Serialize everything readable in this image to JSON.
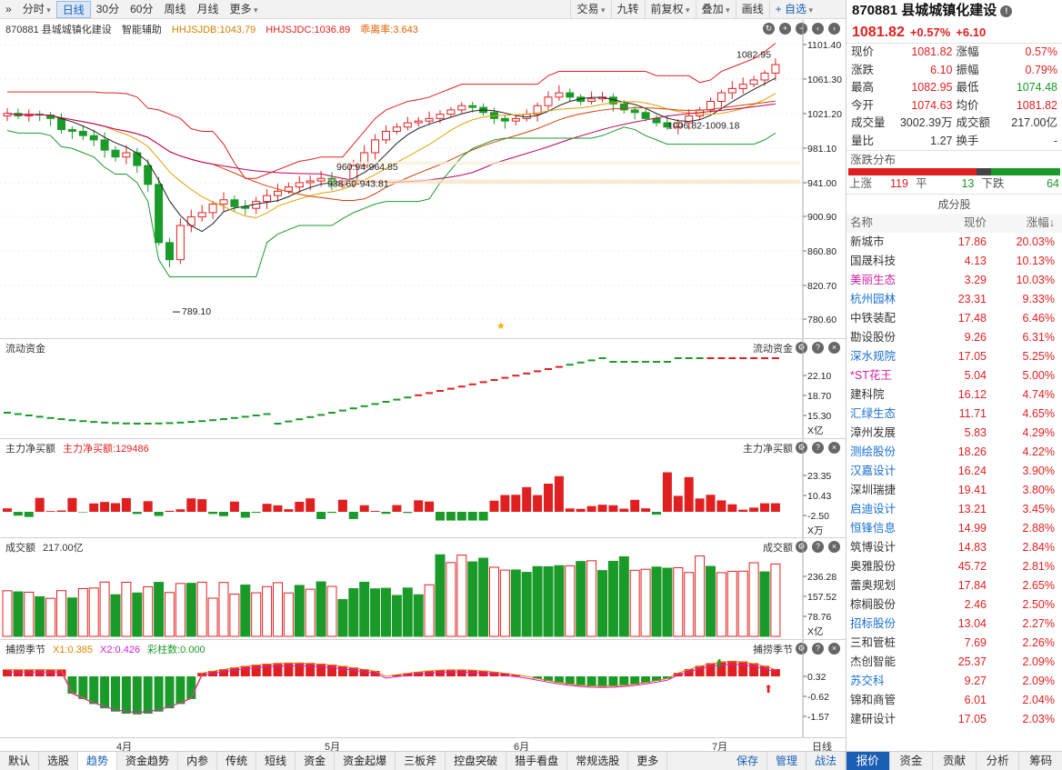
{
  "toolbar": {
    "left": [
      "分时",
      "日线",
      "30分",
      "60分",
      "周线",
      "月线",
      "更多"
    ],
    "right": [
      "交易",
      "九转",
      "前复权",
      "叠加",
      "画线",
      "+ 自选"
    ]
  },
  "main": {
    "title": "870881 县城城镇化建设",
    "assist": "智能辅助",
    "ind1": "HHJSJDB:1043.79",
    "ind2": "HHJSJDC:1036.89",
    "ind3": "乖离率:3.643",
    "axis": [
      "1101.40",
      "1061.30",
      "1021.20",
      "981.10",
      "941.00",
      "900.90",
      "860.80",
      "820.70",
      "780.60"
    ],
    "ann": [
      "1082.95",
      "1006.82-1009.18",
      "960.94-964.85",
      "938.60-943.81",
      "789.10"
    ]
  },
  "flow": {
    "title": "流动资金",
    "rtitle": "流动资金",
    "axis": [
      "22.10",
      "18.70",
      "15.30"
    ],
    "unit": "X亿"
  },
  "mainnet": {
    "title": "主力净买额",
    "val": "主力净买额:129486",
    "rtitle": "主力净买额",
    "axis": [
      "23.35",
      "10.43",
      "-2.50"
    ],
    "unit": "X万"
  },
  "vol": {
    "title": "成交额",
    "val": "217.00亿",
    "rtitle": "成交额",
    "axis": [
      "236.28",
      "157.52",
      "78.76"
    ],
    "unit": "X亿"
  },
  "season": {
    "title": "捕捞季节",
    "x1": "X1:0.385",
    "x2": "X2:0.426",
    "bar": "彩柱数:0.000",
    "rtitle": "捕捞季节",
    "axis": [
      "0.32",
      "-0.62",
      "-1.57"
    ]
  },
  "months": [
    "4月",
    "5月",
    "6月",
    "7月"
  ],
  "period": "日线",
  "bottom": {
    "tabs": [
      "默认",
      "选股",
      "趋势",
      "资金趋势",
      "内参",
      "传统",
      "短线",
      "资金",
      "资金起爆",
      "三板斧",
      "控盘突破",
      "猎手看盘",
      "常规选股",
      "更多"
    ],
    "right": [
      "保存",
      "管理",
      "战法"
    ]
  },
  "stock": {
    "title": "870881 县城城镇化建设",
    "price": "1081.82",
    "pct": "+0.57%",
    "chg": "+6.10",
    "quote": [
      [
        "现价",
        "1081.82",
        "涨幅",
        "0.57%"
      ],
      [
        "涨跌",
        "6.10",
        "振幅",
        "0.79%"
      ],
      [
        "最高",
        "1082.95",
        "最低",
        "1074.48"
      ],
      [
        "今开",
        "1074.63",
        "均价",
        "1081.82"
      ],
      [
        "成交量",
        "3002.39万",
        "成交额",
        "217.00亿"
      ],
      [
        "量比",
        "1.27",
        "换手",
        "-"
      ]
    ],
    "dist_title": "涨跌分布",
    "up_label": "上涨",
    "up": "119",
    "flat_label": "平",
    "flat": "13",
    "down_label": "下跌",
    "down": "64",
    "comp_title": "成分股",
    "head": [
      "名称",
      "现价",
      "涨幅↓"
    ],
    "list": [
      [
        "新城市",
        "17.86",
        "20.03%",
        "k"
      ],
      [
        "国晟科技",
        "4.13",
        "10.13%",
        "k"
      ],
      [
        "美丽生态",
        "3.29",
        "10.03%",
        "p"
      ],
      [
        "杭州园林",
        "23.31",
        "9.33%",
        "b"
      ],
      [
        "中铁装配",
        "17.48",
        "6.46%",
        "k"
      ],
      [
        "勘设股份",
        "9.26",
        "6.31%",
        "k"
      ],
      [
        "深水规院",
        "17.05",
        "5.25%",
        "b"
      ],
      [
        "*ST花王",
        "5.04",
        "5.00%",
        "p"
      ],
      [
        "建科院",
        "16.12",
        "4.74%",
        "k"
      ],
      [
        "汇绿生态",
        "11.71",
        "4.65%",
        "b"
      ],
      [
        "漳州发展",
        "5.83",
        "4.29%",
        "k"
      ],
      [
        "测绘股份",
        "18.26",
        "4.22%",
        "b"
      ],
      [
        "汉嘉设计",
        "16.24",
        "3.90%",
        "b"
      ],
      [
        "深圳瑞捷",
        "19.41",
        "3.80%",
        "k"
      ],
      [
        "启迪设计",
        "13.21",
        "3.45%",
        "b"
      ],
      [
        "恒锋信息",
        "14.99",
        "2.88%",
        "b"
      ],
      [
        "筑博设计",
        "14.83",
        "2.84%",
        "k"
      ],
      [
        "奥雅股份",
        "45.72",
        "2.81%",
        "k"
      ],
      [
        "蕾奥规划",
        "17.84",
        "2.65%",
        "k"
      ],
      [
        "棕榈股份",
        "2.46",
        "2.50%",
        "k"
      ],
      [
        "招标股份",
        "13.04",
        "2.27%",
        "b"
      ],
      [
        "三和管桩",
        "7.69",
        "2.26%",
        "k"
      ],
      [
        "杰创智能",
        "25.37",
        "2.09%",
        "k"
      ],
      [
        "苏交科",
        "9.27",
        "2.09%",
        "b"
      ],
      [
        "锦和商管",
        "6.01",
        "2.04%",
        "k"
      ],
      [
        "建研设计",
        "17.05",
        "2.03%",
        "k"
      ]
    ],
    "tabs": [
      "报价",
      "资金",
      "贡献",
      "分析",
      "筹码"
    ]
  },
  "colors": {
    "up": "#e02020",
    "down": "#1a9a28"
  }
}
